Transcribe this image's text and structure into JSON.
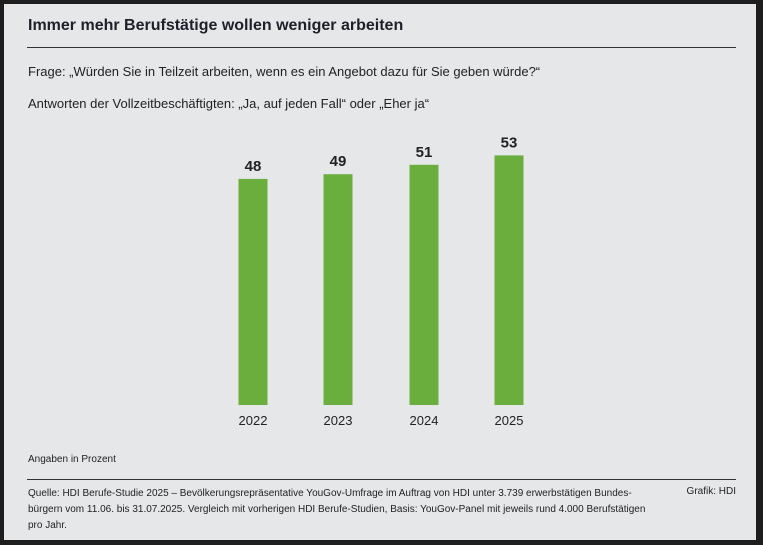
{
  "chart_data": {
    "type": "bar",
    "title": "Immer mehr Berufstätige wollen weniger arbeiten",
    "question": "Frage: „Würden Sie in Teilzeit arbeiten, wenn es ein Angebot dazu für Sie geben würde?“",
    "subtitle": "Antworten der Vollzeitbeschäftigten: „Ja, auf jeden Fall“ oder „Eher ja“",
    "categories": [
      "2022",
      "2023",
      "2024",
      "2025"
    ],
    "values": [
      48,
      49,
      51,
      53
    ],
    "unit_note": "Angaben in Prozent",
    "ylim": [
      0,
      53
    ],
    "grid": false,
    "bar_color": "#6aae3e",
    "source": "Quelle: HDI Berufe-Studie 2025 – Bevölkerungsrepräsentative YouGov-Umfrage im Auftrag von HDI unter 3.739 erwerbstätigen Bundes-bürgern vom 11.06. bis 31.07.2025. Vergleich mit vorherigen HDI Berufe-Studien, Basis: YouGov-Panel mit jeweils rund 4.000 Berufstätigen pro Jahr.",
    "credit": "Grafik: HDI"
  }
}
